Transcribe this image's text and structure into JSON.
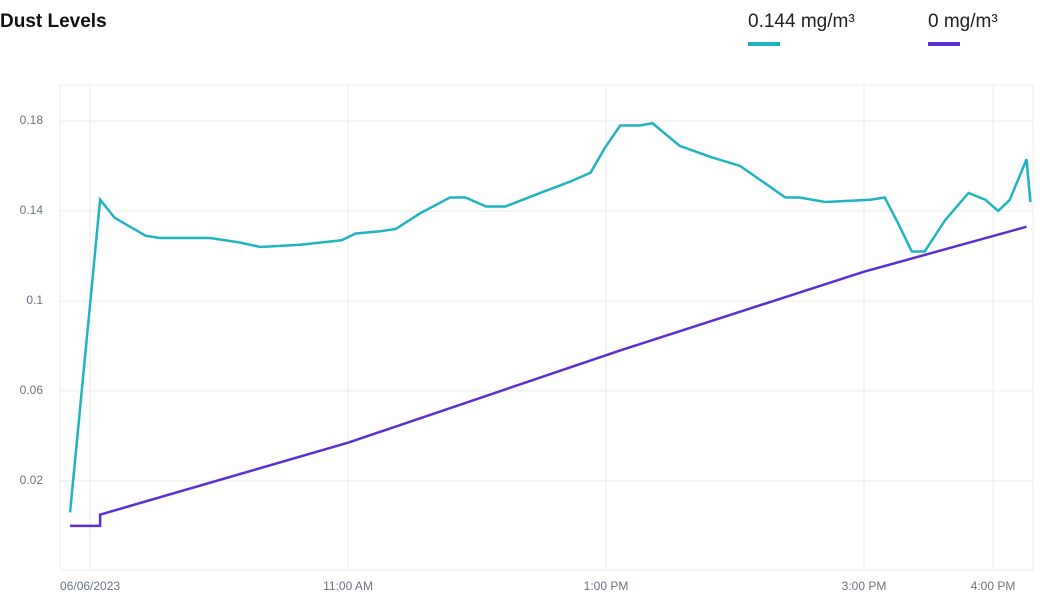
{
  "chart_data": {
    "type": "line",
    "title": "Dust Levels",
    "series": [
      {
        "name": "0.144 mg/m³",
        "color": "#1fb5c0",
        "x": [
          8.845,
          9.078,
          9.19,
          9.43,
          9.54,
          9.93,
          10.16,
          10.32,
          10.63,
          10.95,
          11.06,
          11.25,
          11.37,
          11.56,
          11.79,
          11.91,
          12.07,
          12.22,
          12.49,
          12.72,
          12.88,
          12.99,
          13.11,
          13.26,
          13.36,
          13.57,
          13.81,
          14.04,
          14.19,
          14.39,
          14.5,
          14.7,
          15.05,
          15.16,
          15.26,
          15.37,
          15.47,
          15.63,
          15.81,
          15.94,
          16.04,
          16.13,
          16.26,
          16.29
        ],
        "values": [
          0.006,
          0.145,
          0.137,
          0.129,
          0.128,
          0.128,
          0.126,
          0.124,
          0.125,
          0.127,
          0.13,
          0.131,
          0.132,
          0.139,
          0.146,
          0.146,
          0.142,
          0.142,
          0.148,
          0.153,
          0.157,
          0.168,
          0.178,
          0.178,
          0.179,
          0.169,
          0.164,
          0.16,
          0.154,
          0.146,
          0.146,
          0.144,
          0.145,
          0.146,
          0.135,
          0.122,
          0.122,
          0.136,
          0.148,
          0.145,
          0.14,
          0.145,
          0.163,
          0.144
        ]
      },
      {
        "name": "0 mg/m³",
        "color": "#5b2fd0",
        "x": [
          8.845,
          9.078,
          9.078,
          11.0,
          13.11,
          15.0,
          16.26
        ],
        "values": [
          0,
          0,
          0.005,
          0.037,
          0.078,
          0.113,
          0.133
        ]
      }
    ],
    "xlim": [
      8.767,
      16.31
    ],
    "xticks": [
      {
        "value": 9,
        "label": "06/06/2023"
      },
      {
        "value": 11,
        "label": "11:00 AM"
      },
      {
        "value": 13,
        "label": "1:00 PM"
      },
      {
        "value": 15,
        "label": "3:00 PM"
      },
      {
        "value": 16,
        "label": "4:00 PM"
      }
    ],
    "ylim": [
      -0.0196,
      0.196
    ],
    "yticks": [
      0.02,
      0.06,
      0.1,
      0.14,
      0.18
    ],
    "grid": true
  }
}
